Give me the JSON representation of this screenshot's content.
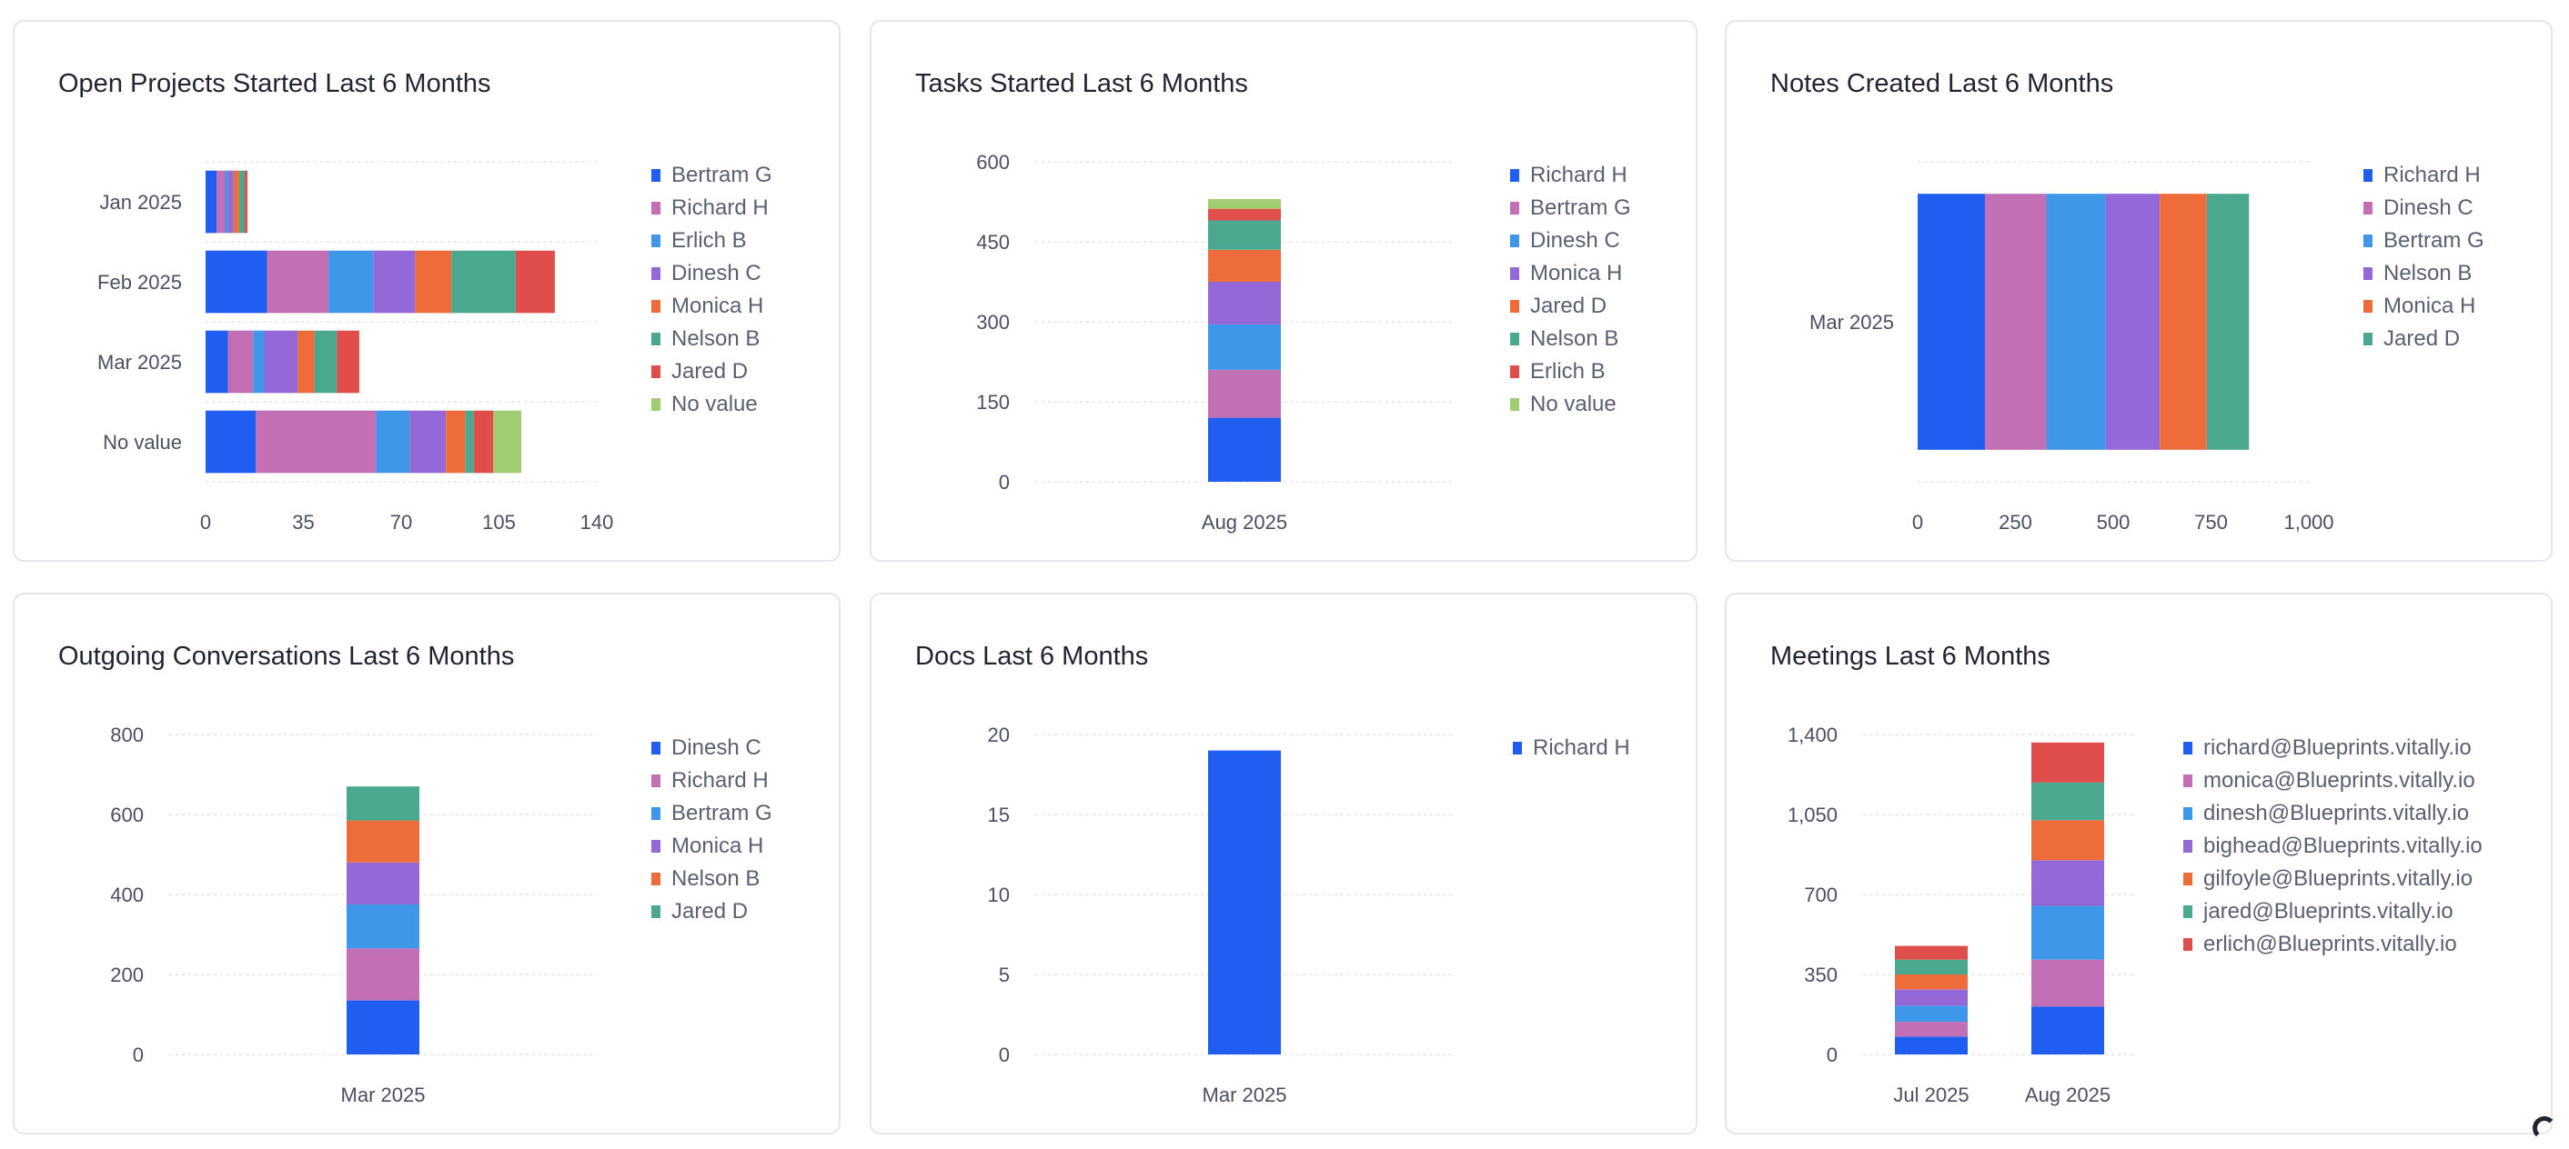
{
  "colors": {
    "blue": "#1F5EF0",
    "pink": "#C26FB5",
    "lightblue": "#3E97E8",
    "purple": "#9468D6",
    "orange": "#EE6C3A",
    "teal": "#4AA88F",
    "red": "#DF4E4A",
    "green": "#A0CD72"
  },
  "chart_data": [
    {
      "id": "projects",
      "type": "bar",
      "orientation": "horizontal",
      "stacked": true,
      "title": "Open Projects Started Last 6 Months",
      "categories": [
        "Jan 2025",
        "Feb 2025",
        "Mar 2025",
        "No value"
      ],
      "xlim": [
        0,
        140
      ],
      "xticks": [
        0,
        35,
        70,
        105,
        140
      ],
      "tick_labels": [
        "0",
        "35",
        "70",
        "105",
        "140"
      ],
      "legend_position": "right",
      "series": [
        {
          "name": "Bertram G",
          "color": "#1F5EF0",
          "values": [
            4,
            22,
            8,
            18
          ]
        },
        {
          "name": "Richard H",
          "color": "#C26FB5",
          "values": [
            3,
            22,
            9,
            43
          ]
        },
        {
          "name": "Erlich B",
          "color": "#3E97E8",
          "values": [
            1,
            16,
            4,
            12
          ]
        },
        {
          "name": "Dinesh C",
          "color": "#9468D6",
          "values": [
            2,
            15,
            12,
            13
          ]
        },
        {
          "name": "Monica H",
          "color": "#EE6C3A",
          "values": [
            2,
            13,
            6,
            7
          ]
        },
        {
          "name": "Nelson B",
          "color": "#4AA88F",
          "values": [
            2,
            23,
            8,
            3
          ]
        },
        {
          "name": "Jared D",
          "color": "#DF4E4A",
          "values": [
            1,
            14,
            8,
            7
          ]
        },
        {
          "name": "No value",
          "color": "#A0CD72",
          "values": [
            0,
            0,
            0,
            10
          ]
        }
      ]
    },
    {
      "id": "tasks",
      "type": "bar",
      "orientation": "vertical",
      "stacked": true,
      "title": "Tasks Started Last 6 Months",
      "categories": [
        "Aug 2025"
      ],
      "ylim": [
        0,
        600
      ],
      "yticks": [
        0,
        150,
        300,
        450,
        600
      ],
      "tick_labels": [
        "0",
        "150",
        "300",
        "450",
        "600"
      ],
      "legend_position": "right",
      "series": [
        {
          "name": "Richard H",
          "color": "#1F5EF0",
          "values": [
            120
          ]
        },
        {
          "name": "Bertram G",
          "color": "#C26FB5",
          "values": [
            90
          ]
        },
        {
          "name": "Dinesh C",
          "color": "#3E97E8",
          "values": [
            85
          ]
        },
        {
          "name": "Monica H",
          "color": "#9468D6",
          "values": [
            80
          ]
        },
        {
          "name": "Jared D",
          "color": "#EE6C3A",
          "values": [
            60
          ]
        },
        {
          "name": "Nelson B",
          "color": "#4AA88F",
          "values": [
            55
          ]
        },
        {
          "name": "Erlich B",
          "color": "#DF4E4A",
          "values": [
            22
          ]
        },
        {
          "name": "No value",
          "color": "#A0CD72",
          "values": [
            18
          ]
        }
      ]
    },
    {
      "id": "notes",
      "type": "bar",
      "orientation": "horizontal",
      "stacked": true,
      "title": "Notes Created Last 6 Months",
      "categories": [
        "Mar 2025"
      ],
      "xlim": [
        0,
        1000
      ],
      "xticks": [
        0,
        250,
        500,
        750,
        1000
      ],
      "tick_labels": [
        "0",
        "250",
        "500",
        "750",
        "1,000"
      ],
      "legend_position": "right",
      "series": [
        {
          "name": "Richard H",
          "color": "#1F5EF0",
          "values": [
            172
          ]
        },
        {
          "name": "Dinesh C",
          "color": "#C26FB5",
          "values": [
            157
          ]
        },
        {
          "name": "Bertram G",
          "color": "#3E97E8",
          "values": [
            152
          ]
        },
        {
          "name": "Nelson B",
          "color": "#9468D6",
          "values": [
            138
          ]
        },
        {
          "name": "Monica H",
          "color": "#EE6C3A",
          "values": [
            120
          ]
        },
        {
          "name": "Jared D",
          "color": "#4AA88F",
          "values": [
            108
          ]
        }
      ]
    },
    {
      "id": "conversations",
      "type": "bar",
      "orientation": "vertical",
      "stacked": true,
      "title": "Outgoing Conversations Last 6 Months",
      "categories": [
        "Mar 2025"
      ],
      "ylim": [
        0,
        800
      ],
      "yticks": [
        0,
        200,
        400,
        600,
        800
      ],
      "tick_labels": [
        "0",
        "200",
        "400",
        "600",
        "800"
      ],
      "legend_position": "right",
      "series": [
        {
          "name": "Dinesh C",
          "color": "#1F5EF0",
          "values": [
            135
          ]
        },
        {
          "name": "Richard H",
          "color": "#C26FB5",
          "values": [
            130
          ]
        },
        {
          "name": "Bertram G",
          "color": "#3E97E8",
          "values": [
            110
          ]
        },
        {
          "name": "Monica H",
          "color": "#9468D6",
          "values": [
            105
          ]
        },
        {
          "name": "Nelson B",
          "color": "#EE6C3A",
          "values": [
            105
          ]
        },
        {
          "name": "Jared D",
          "color": "#4AA88F",
          "values": [
            85
          ]
        }
      ]
    },
    {
      "id": "docs",
      "type": "bar",
      "orientation": "vertical",
      "stacked": true,
      "title": "Docs Last 6 Months",
      "categories": [
        "Mar 2025"
      ],
      "ylim": [
        0,
        20
      ],
      "yticks": [
        0,
        5,
        10,
        15,
        20
      ],
      "tick_labels": [
        "0",
        "5",
        "10",
        "15",
        "20"
      ],
      "legend_position": "right",
      "series": [
        {
          "name": "Richard H",
          "color": "#1F5EF0",
          "values": [
            19
          ]
        }
      ]
    },
    {
      "id": "meetings",
      "type": "bar",
      "orientation": "vertical",
      "stacked": true,
      "title": "Meetings Last 6 Months",
      "categories": [
        "Jul 2025",
        "Aug 2025"
      ],
      "ylim": [
        0,
        1400
      ],
      "yticks": [
        0,
        350,
        700,
        1050,
        1400
      ],
      "tick_labels": [
        "0",
        "350",
        "700",
        "1,050",
        "1,400"
      ],
      "legend_position": "right",
      "series": [
        {
          "name": "richard@Blueprints.vitally.io",
          "color": "#1F5EF0",
          "values": [
            78,
            210
          ]
        },
        {
          "name": "monica@Blueprints.vitally.io",
          "color": "#C26FB5",
          "values": [
            65,
            205
          ]
        },
        {
          "name": "dinesh@Blueprints.vitally.io",
          "color": "#3E97E8",
          "values": [
            70,
            235
          ]
        },
        {
          "name": "bighead@Blueprints.vitally.io",
          "color": "#9468D6",
          "values": [
            72,
            200
          ]
        },
        {
          "name": "gilfoyle@Blueprints.vitally.io",
          "color": "#EE6C3A",
          "values": [
            65,
            175
          ]
        },
        {
          "name": "jared@Blueprints.vitally.io",
          "color": "#4AA88F",
          "values": [
            65,
            165
          ]
        },
        {
          "name": "erlich@Blueprints.vitally.io",
          "color": "#DF4E4A",
          "values": [
            60,
            175
          ]
        }
      ]
    }
  ]
}
